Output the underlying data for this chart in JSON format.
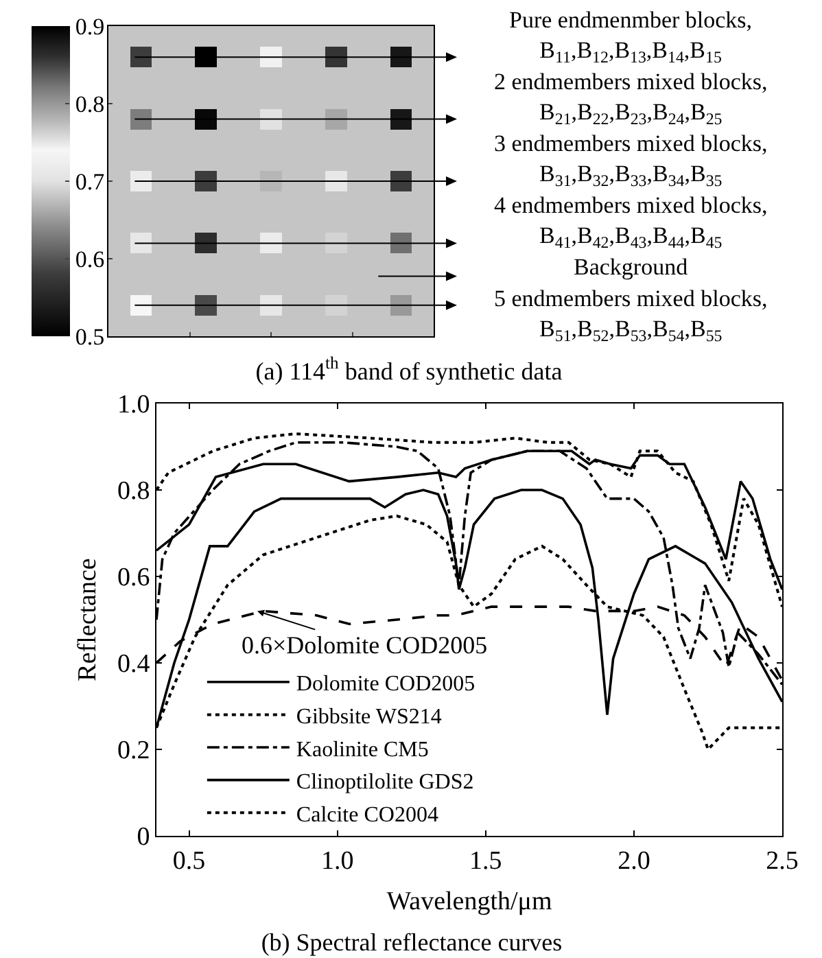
{
  "chart_data": [
    {
      "type": "heatmap",
      "title": "(a) 114$^{th}$ band of synthetic data",
      "categories": [
        null,
        null,
        null,
        null,
        null,
        null,
        null,
        null,
        null,
        null,
        null,
        null,
        null,
        null,
        null
      ],
      "y_categories": [
        null,
        null,
        null,
        null,
        null,
        null,
        null,
        null,
        null,
        null,
        null,
        null,
        null,
        null,
        null
      ],
      "cells": [
        [
          0.68,
          0.68,
          0.68,
          0.68,
          0.68,
          0.68,
          0.68,
          0.68,
          0.68,
          0.68,
          0.68,
          0.68,
          0.68,
          0.68,
          0.68
        ],
        [
          0.68,
          0.58,
          0.68,
          0.68,
          0.5,
          0.68,
          0.68,
          0.73,
          0.68,
          0.68,
          0.57,
          0.68,
          0.68,
          0.53,
          0.68
        ],
        [
          0.68,
          0.68,
          0.68,
          0.68,
          0.68,
          0.68,
          0.68,
          0.68,
          0.68,
          0.68,
          0.68,
          0.68,
          0.68,
          0.68,
          0.68
        ],
        [
          0.68,
          0.68,
          0.68,
          0.68,
          0.68,
          0.68,
          0.68,
          0.68,
          0.68,
          0.68,
          0.68,
          0.68,
          0.68,
          0.68,
          0.68
        ],
        [
          0.68,
          0.63,
          0.68,
          0.68,
          0.51,
          0.68,
          0.68,
          0.7,
          0.68,
          0.68,
          0.66,
          0.68,
          0.68,
          0.53,
          0.68
        ],
        [
          0.68,
          0.68,
          0.68,
          0.68,
          0.68,
          0.68,
          0.68,
          0.68,
          0.68,
          0.68,
          0.68,
          0.68,
          0.68,
          0.68,
          0.68
        ],
        [
          0.68,
          0.68,
          0.68,
          0.68,
          0.68,
          0.68,
          0.68,
          0.68,
          0.68,
          0.68,
          0.68,
          0.68,
          0.68,
          0.68,
          0.68
        ],
        [
          0.68,
          0.72,
          0.68,
          0.68,
          0.58,
          0.68,
          0.68,
          0.67,
          0.68,
          0.68,
          0.71,
          0.68,
          0.68,
          0.58,
          0.68
        ],
        [
          0.68,
          0.68,
          0.68,
          0.68,
          0.68,
          0.68,
          0.68,
          0.68,
          0.68,
          0.68,
          0.68,
          0.68,
          0.68,
          0.68,
          0.68
        ],
        [
          0.68,
          0.68,
          0.68,
          0.68,
          0.68,
          0.68,
          0.68,
          0.68,
          0.68,
          0.68,
          0.68,
          0.68,
          0.68,
          0.68,
          0.68
        ],
        [
          0.68,
          0.71,
          0.68,
          0.68,
          0.56,
          0.68,
          0.68,
          0.72,
          0.68,
          0.68,
          0.69,
          0.68,
          0.68,
          0.62,
          0.68
        ],
        [
          0.68,
          0.68,
          0.68,
          0.68,
          0.68,
          0.68,
          0.68,
          0.68,
          0.68,
          0.68,
          0.68,
          0.68,
          0.68,
          0.68,
          0.68
        ],
        [
          0.68,
          0.68,
          0.68,
          0.68,
          0.68,
          0.68,
          0.68,
          0.68,
          0.68,
          0.68,
          0.68,
          0.68,
          0.68,
          0.68,
          0.68
        ],
        [
          0.68,
          0.74,
          0.68,
          0.68,
          0.59,
          0.68,
          0.68,
          0.71,
          0.68,
          0.68,
          0.69,
          0.68,
          0.68,
          0.65,
          0.68
        ],
        [
          0.68,
          0.68,
          0.68,
          0.68,
          0.68,
          0.68,
          0.68,
          0.68,
          0.68,
          0.68,
          0.68,
          0.68,
          0.68,
          0.68,
          0.68
        ]
      ],
      "clim": [
        0.5,
        0.9
      ],
      "cticks": [
        0.5,
        0.6,
        0.7,
        0.8,
        0.9
      ],
      "annotations": [
        "Pure endmenmber blocks,\nB$_{11}$,B$_{12}$,B$_{13}$,B$_{14}$,B$_{15}$",
        "2 endmembers mixed blocks,\nB$_{21}$,B$_{22}$,B$_{23}$,B$_{24}$,B$_{25}$",
        "3 endmembers mixed blocks,\nB$_{31}$,B$_{32}$,B$_{33}$,B$_{34}$,B$_{35}$",
        "4 endmembers mixed blocks,\nB$_{41}$,B$_{42}$,B$_{43}$,B$_{44}$,B$_{45}$",
        "Background",
        "5 endmembers mixed blocks,\nB$_{51}$,B$_{52}$,B$_{53}$,B$_{54}$,B$_{55}$"
      ]
    },
    {
      "type": "line",
      "title": "(b) Spectral reflectance curves",
      "xlabel": "Wavelength/μm",
      "ylabel": "Reflectance",
      "xlim": [
        0.39,
        2.5
      ],
      "xticks": [
        0.5,
        {
          "value": 1,
          "label": "1.0"
        },
        1.5,
        {
          "value": 2,
          "label": "2.0"
        },
        2.5
      ],
      "ylim": [
        0,
        1
      ],
      "yticks": [
        0,
        0.2,
        0.4,
        0.6,
        0.8,
        {
          "value": 1,
          "label": "1.0"
        }
      ],
      "grid": false,
      "legend": "bottom left",
      "annotations": [
        {
          "text": "0.6×Dolomite COD2005",
          "x": 0.73,
          "y": 0.52
        }
      ],
      "series": [
        {
          "name": "Dolomite COD2005",
          "color": "#000000",
          "line_style": "solid",
          "x": [
            0.39,
            0.5,
            0.59,
            0.75,
            0.86,
            1.04,
            1.2,
            1.34,
            1.4,
            1.43,
            1.52,
            1.64,
            1.75,
            1.79,
            1.85,
            1.87,
            1.92,
            1.99,
            2.02,
            2.08,
            2.12,
            2.17,
            2.24,
            2.31,
            2.36,
            2.4,
            2.46,
            2.5
          ],
          "values": [
            0.66,
            0.72,
            0.83,
            0.86,
            0.86,
            0.82,
            0.83,
            0.84,
            0.83,
            0.85,
            0.87,
            0.89,
            0.89,
            0.89,
            0.86,
            0.87,
            0.86,
            0.85,
            0.88,
            0.88,
            0.86,
            0.86,
            0.76,
            0.64,
            0.82,
            0.78,
            0.64,
            0.57
          ]
        },
        {
          "name": "Gibbsite WS214",
          "color": "#000000",
          "line_style": "dotted",
          "x": [
            0.39,
            0.45,
            0.52,
            0.63,
            0.75,
            0.93,
            1.11,
            1.2,
            1.3,
            1.37,
            1.41,
            1.46,
            1.52,
            1.6,
            1.69,
            1.76,
            1.84,
            1.91,
            2.03,
            2.1,
            2.17,
            2.23,
            2.25,
            2.32,
            2.42,
            2.5
          ],
          "values": [
            0.25,
            0.35,
            0.46,
            0.58,
            0.65,
            0.69,
            0.73,
            0.74,
            0.72,
            0.68,
            0.58,
            0.53,
            0.56,
            0.64,
            0.67,
            0.64,
            0.58,
            0.53,
            0.51,
            0.46,
            0.34,
            0.24,
            0.2,
            0.25,
            0.25,
            0.25
          ]
        },
        {
          "name": "Kaolinite CM5",
          "color": "#000000",
          "line_style": "dashdot",
          "x": [
            0.39,
            0.41,
            0.45,
            0.58,
            0.67,
            0.77,
            0.86,
            1.02,
            1.2,
            1.27,
            1.34,
            1.38,
            1.41,
            1.43,
            1.45,
            1.52,
            1.64,
            1.75,
            1.84,
            1.91,
            2.0,
            2.05,
            2.1,
            2.13,
            2.15,
            2.19,
            2.22,
            2.24,
            2.3,
            2.32,
            2.35,
            2.42,
            2.5
          ],
          "values": [
            0.5,
            0.64,
            0.7,
            0.8,
            0.86,
            0.89,
            0.91,
            0.91,
            0.9,
            0.89,
            0.85,
            0.74,
            0.58,
            0.74,
            0.84,
            0.87,
            0.89,
            0.89,
            0.85,
            0.78,
            0.78,
            0.75,
            0.69,
            0.58,
            0.48,
            0.41,
            0.48,
            0.58,
            0.47,
            0.39,
            0.47,
            0.42,
            0.35
          ]
        },
        {
          "name": "Clinoptilolite GDS2",
          "color": "#000000",
          "line_style": "solid",
          "x": [
            0.39,
            0.45,
            0.5,
            0.57,
            0.63,
            0.72,
            0.81,
            0.93,
            1.11,
            1.16,
            1.23,
            1.29,
            1.34,
            1.37,
            1.4,
            1.41,
            1.43,
            1.46,
            1.53,
            1.62,
            1.69,
            1.76,
            1.82,
            1.86,
            1.88,
            1.91,
            1.93,
            2.0,
            2.05,
            2.14,
            2.24,
            2.33,
            2.42,
            2.5
          ],
          "values": [
            0.25,
            0.4,
            0.5,
            0.67,
            0.67,
            0.75,
            0.78,
            0.78,
            0.78,
            0.76,
            0.79,
            0.8,
            0.79,
            0.74,
            0.63,
            0.57,
            0.62,
            0.72,
            0.78,
            0.8,
            0.8,
            0.78,
            0.72,
            0.62,
            0.5,
            0.28,
            0.41,
            0.56,
            0.64,
            0.67,
            0.63,
            0.54,
            0.41,
            0.31
          ]
        },
        {
          "name": "Calcite CO2004",
          "color": "#000000",
          "line_style": "dotted",
          "x": [
            0.39,
            0.43,
            0.58,
            0.72,
            0.86,
            1.11,
            1.32,
            1.46,
            1.6,
            1.71,
            1.78,
            1.85,
            1.92,
            1.99,
            2.02,
            2.08,
            2.14,
            2.2,
            2.26,
            2.32,
            2.37,
            2.42,
            2.5
          ],
          "values": [
            0.8,
            0.84,
            0.89,
            0.92,
            0.93,
            0.92,
            0.91,
            0.91,
            0.92,
            0.91,
            0.91,
            0.87,
            0.86,
            0.83,
            0.89,
            0.89,
            0.84,
            0.82,
            0.72,
            0.59,
            0.78,
            0.72,
            0.53
          ]
        },
        {
          "color": "#000000",
          "line_style": "dashed",
          "x": [
            0.39,
            0.47,
            0.58,
            0.75,
            0.93,
            1.04,
            1.2,
            1.34,
            1.4,
            1.52,
            1.64,
            1.78,
            1.87,
            2.0,
            2.08,
            2.17,
            2.24,
            2.31,
            2.36,
            2.42,
            2.5
          ],
          "values": [
            0.4,
            0.45,
            0.49,
            0.52,
            0.51,
            0.49,
            0.5,
            0.51,
            0.51,
            0.53,
            0.53,
            0.53,
            0.52,
            0.52,
            0.53,
            0.51,
            0.46,
            0.39,
            0.49,
            0.46,
            0.36
          ]
        }
      ]
    }
  ]
}
